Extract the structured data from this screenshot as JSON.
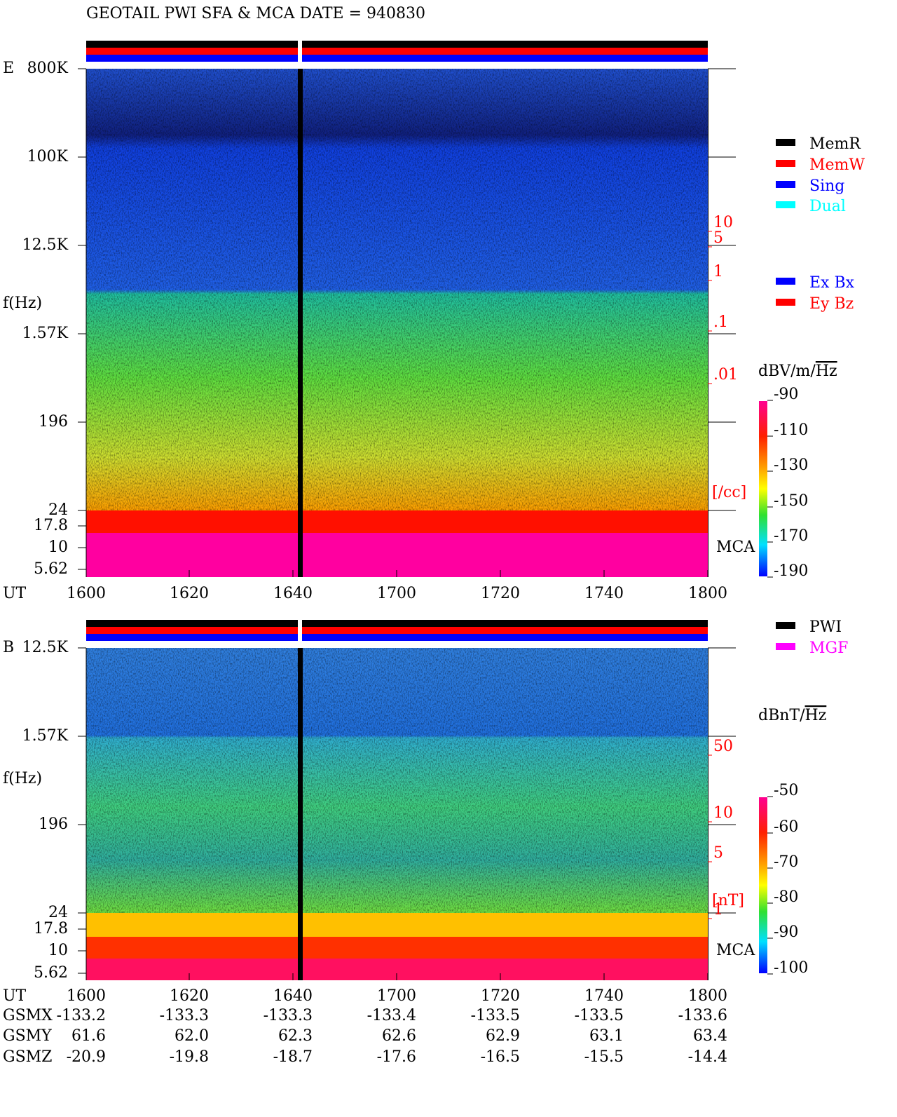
{
  "title": "GEOTAIL  PWI SFA & MCA   DATE = 940830",
  "legend_mode": [
    {
      "name": "MemR",
      "color": "#000000"
    },
    {
      "name": "MemW",
      "color": "#ff0000"
    },
    {
      "name": "Sing",
      "color": "#0000ff"
    },
    {
      "name": "Dual",
      "color": "#00ffff"
    }
  ],
  "legend_antenna": [
    {
      "name": "Ex Bx",
      "color": "#0000ff"
    },
    {
      "name": "Ey Bz",
      "color": "#ff0000"
    }
  ],
  "legend_source": [
    {
      "name": "PWI",
      "color": "#000000"
    },
    {
      "name": "MGF",
      "color": "#ff00ff"
    }
  ],
  "panels": [
    {
      "label": "E",
      "ylabel": "f(Hz)",
      "time_label": "UT",
      "mca_label": "MCA",
      "freq_ticks": [
        "800K",
        "100K",
        "12.5K",
        "1.57K",
        "196",
        "24",
        "17.8",
        "10",
        "5.62"
      ],
      "time_ticks": [
        "1600",
        "1620",
        "1640",
        "1700",
        "1720",
        "1740",
        "1800"
      ],
      "right_ticks": [
        "10",
        "5",
        "1",
        ".1",
        ".01"
      ],
      "right_unit": "[/cc]",
      "unit": {
        "text": "dBV/m/",
        "root": "Hz"
      },
      "colorbar_ticks": [
        "-90",
        "-110",
        "-130",
        "-150",
        "-170",
        "-190"
      ]
    },
    {
      "label": "B",
      "ylabel": "f(Hz)",
      "time_label": "UT",
      "mca_label": "MCA",
      "freq_ticks": [
        "12.5K",
        "1.57K",
        "196",
        "24",
        "17.8",
        "10",
        "5.62"
      ],
      "time_ticks": [
        "1600",
        "1620",
        "1640",
        "1700",
        "1720",
        "1740",
        "1800"
      ],
      "right_ticks": [
        "50",
        "10",
        "5",
        "1"
      ],
      "right_unit": "[nT]",
      "unit": {
        "text": "dBnT/",
        "root": "Hz"
      },
      "colorbar_ticks": [
        "-50",
        "-60",
        "-70",
        "-80",
        "-90",
        "-100"
      ]
    }
  ],
  "orbit": {
    "rows": [
      {
        "name": "GSMX",
        "values": [
          "-133.2",
          "-133.3",
          "-133.3",
          "-133.4",
          "-133.5",
          "-133.5",
          "-133.6"
        ]
      },
      {
        "name": "GSMY",
        "values": [
          "61.6",
          "62.0",
          "62.3",
          "62.6",
          "62.9",
          "63.1",
          "63.4"
        ]
      },
      {
        "name": "GSMZ",
        "values": [
          "-20.9",
          "-19.8",
          "-18.7",
          "-17.6",
          "-16.5",
          "-15.5",
          "-14.4"
        ]
      }
    ]
  }
}
